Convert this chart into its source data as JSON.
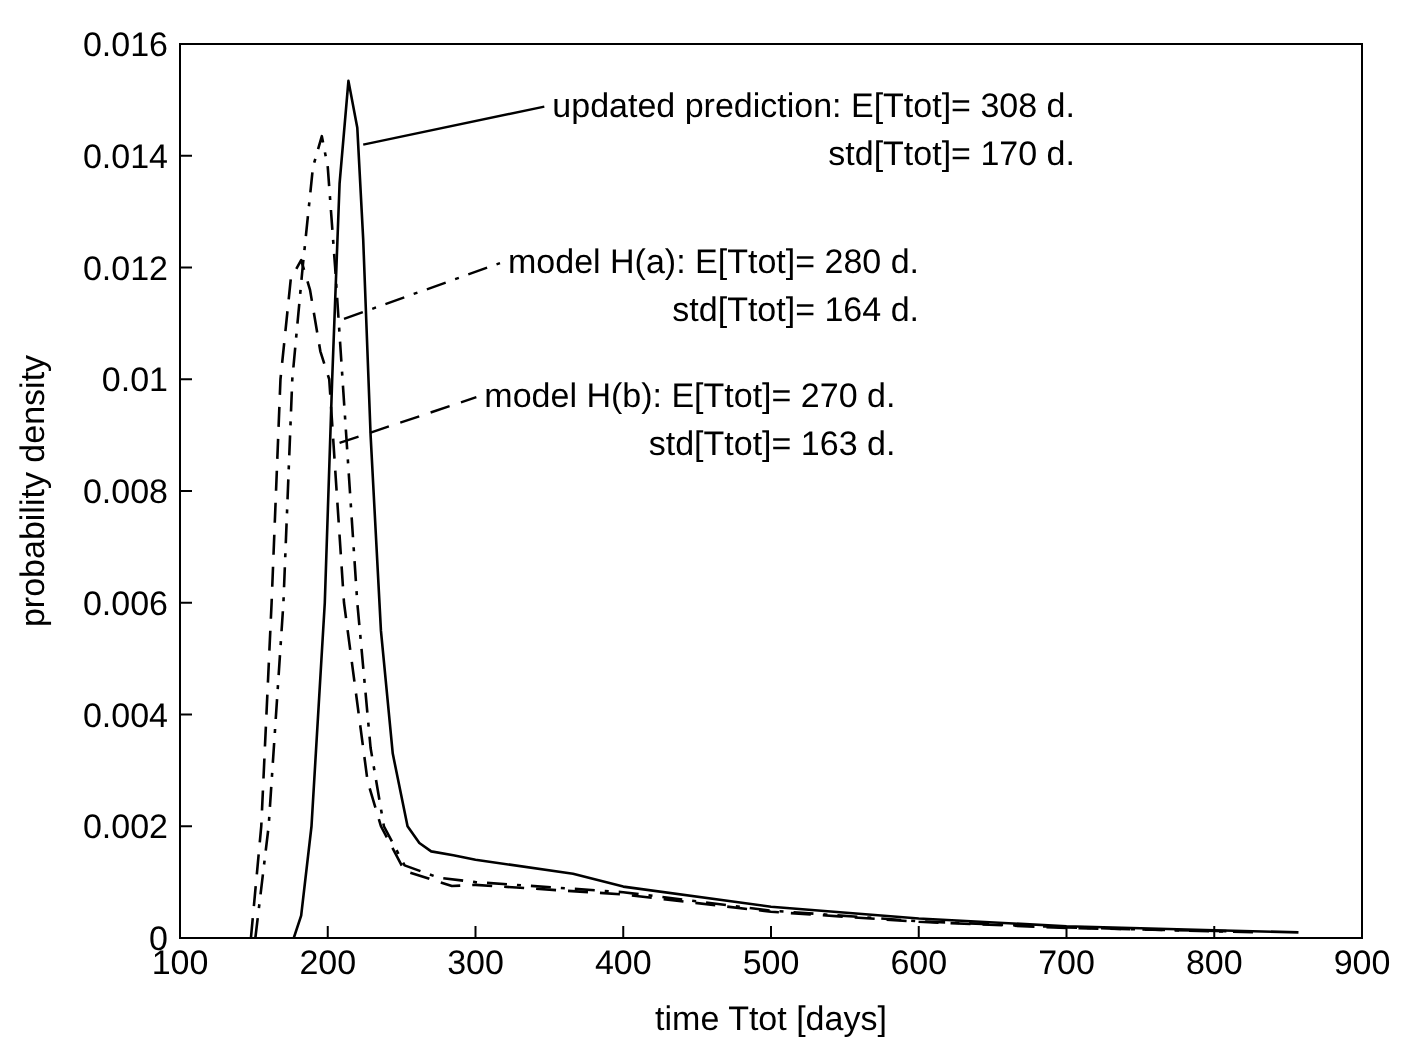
{
  "chart_data": {
    "type": "line",
    "xlabel": "time Ttot [days]",
    "ylabel": "probability density",
    "xlim": [
      100,
      900
    ],
    "xticks": [
      100,
      200,
      300,
      400,
      500,
      600,
      700,
      800,
      900
    ],
    "ylim": [
      0,
      0.016
    ],
    "yticks": [
      0,
      0.002,
      0.004,
      0.006,
      0.008,
      0.01,
      0.012,
      0.014,
      0.016
    ],
    "marker": "none",
    "series": [
      {
        "color": "#000000",
        "line_style": "solid",
        "x": [
          177,
          182,
          189,
          198,
          203,
          208,
          214,
          220,
          224,
          229,
          236,
          244,
          254,
          262,
          270,
          285,
          300,
          366,
          400,
          500,
          600,
          700,
          800,
          857
        ],
        "values": [
          0,
          0.0004,
          0.002,
          0.006,
          0.01,
          0.0135,
          0.01534,
          0.0145,
          0.0125,
          0.009,
          0.0055,
          0.0033,
          0.002,
          0.0017,
          0.00155,
          0.00148,
          0.0014,
          0.00115,
          0.00092,
          0.00056,
          0.00035,
          0.00021,
          0.00014,
          0.0001
        ]
      },
      {
        "color": "#000000",
        "line_style": "dashdot",
        "x": [
          151,
          160,
          170,
          176,
          183,
          190,
          196,
          200,
          205,
          210,
          220,
          229,
          238,
          252,
          275,
          300,
          400,
          500,
          600,
          700,
          800,
          830
        ],
        "values": [
          0,
          0.002,
          0.006,
          0.01,
          0.012,
          0.0138,
          0.01435,
          0.0138,
          0.012,
          0.01,
          0.006,
          0.0034,
          0.002,
          0.0013,
          0.00108,
          0.001,
          0.00082,
          0.00049,
          0.0003,
          0.00019,
          0.00012,
          0.0001
        ]
      },
      {
        "color": "#000000",
        "line_style": "dashed",
        "x": [
          148,
          155,
          162,
          168,
          175,
          182,
          188,
          195,
          201,
          211,
          227,
          236,
          252,
          284,
          300,
          400,
          500,
          600,
          700,
          813
        ],
        "values": [
          0,
          0.002,
          0.006,
          0.01,
          0.0118,
          0.01213,
          0.0116,
          0.0105,
          0.01,
          0.006,
          0.0028,
          0.002,
          0.0012,
          0.00093,
          0.00095,
          0.00078,
          0.00047,
          0.00029,
          0.00018,
          0.00012
        ]
      }
    ],
    "annotations": [
      {
        "text": "updated prediction: E[Ttot]= 308 d.\nstd[Ttot]= 170 d.",
        "x": 224,
        "y": 0.0142
      },
      {
        "text": "model H(a): E[Ttot]= 280 d.\nstd[Ttot]= 164 d.",
        "x": 211,
        "y": 0.01108
      },
      {
        "text": "model H(b): E[Ttot]= 270 d.\nstd[Ttot]= 163 d.",
        "x": 208,
        "y": 0.00886
      }
    ]
  }
}
